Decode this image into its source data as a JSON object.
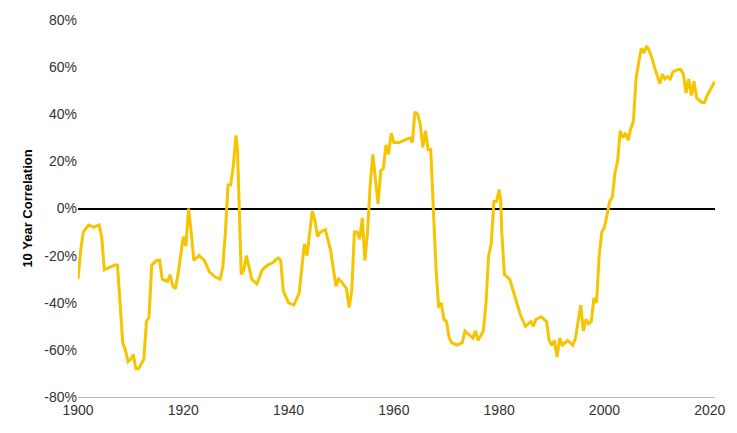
{
  "chart_data": {
    "type": "line",
    "y_label": "10 Year Correlation",
    "color": "#f6c400",
    "grid": false,
    "x": [
      1900,
      1900.5,
      1901,
      1902,
      1903,
      1904,
      1904.5,
      1905,
      1906,
      1907,
      1907.5,
      1908,
      1908.5,
      1909,
      1909.5,
      1910,
      1910.5,
      1911,
      1911.5,
      1912,
      1912.5,
      1913,
      1913.5,
      1914,
      1915,
      1915.5,
      1916,
      1917,
      1917.5,
      1918,
      1918.5,
      1919,
      1920,
      1920.5,
      1921,
      1921.5,
      1922,
      1923,
      1924,
      1925,
      1926,
      1927,
      1927.5,
      1928,
      1928.5,
      1929,
      1929.5,
      1930,
      1930.3,
      1930.7,
      1931,
      1931.5,
      1932,
      1933,
      1934,
      1935,
      1936,
      1937,
      1938,
      1938.5,
      1939,
      1940,
      1941,
      1942,
      1943,
      1943.5,
      1944,
      1944.5,
      1945,
      1945.5,
      1946,
      1947,
      1948,
      1949,
      1949.5,
      1950,
      1951,
      1951.5,
      1952,
      1952.5,
      1953,
      1953.5,
      1954,
      1954.5,
      1955,
      1955.5,
      1956,
      1956.5,
      1957,
      1957.5,
      1958,
      1958.5,
      1959,
      1959.5,
      1960,
      1961,
      1962,
      1963,
      1963.5,
      1964,
      1964.5,
      1965,
      1965.5,
      1966,
      1966.5,
      1967,
      1967.5,
      1968,
      1968.5,
      1969,
      1969.5,
      1970,
      1970.5,
      1971,
      1972,
      1973,
      1973.5,
      1974,
      1975,
      1975.5,
      1976,
      1977,
      1977.5,
      1978,
      1978.5,
      1979,
      1979.5,
      1980,
      1980.3,
      1980.5,
      1981,
      1982,
      1983,
      1984,
      1985,
      1986,
      1986.5,
      1987,
      1988,
      1989,
      1989.5,
      1990,
      1990.5,
      1991,
      1991.5,
      1992,
      1993,
      1994,
      1994.5,
      1995,
      1995.5,
      1996,
      1996.5,
      1997,
      1997.5,
      1998,
      1998.5,
      1999,
      1999.5,
      2000,
      2000.5,
      2001,
      2001.5,
      2002,
      2002.5,
      2003,
      2003.5,
      2004,
      2004.5,
      2005,
      2005.5,
      2006,
      2006.5,
      2007,
      2007.5,
      2008,
      2008.5,
      2009,
      2009.5,
      2010,
      2010.5,
      2011,
      2011.5,
      2012,
      2012.5,
      2013,
      2014,
      2014.5,
      2015,
      2015.5,
      2016,
      2016.5,
      2017,
      2017.5,
      2018,
      2018.5,
      2019,
      2019.5,
      2020,
      2020.5,
      2021
    ],
    "values": [
      -30,
      -18,
      -10,
      -7,
      -8,
      -7,
      -12,
      -26,
      -25,
      -24,
      -24,
      -40,
      -57,
      -60,
      -65,
      -64,
      -62,
      -68,
      -68,
      -66,
      -64,
      -48,
      -46,
      -24,
      -22,
      -22,
      -30,
      -31,
      -28,
      -33,
      -34,
      -28,
      -12,
      -16,
      0,
      -10,
      -22,
      -20,
      -22,
      -27,
      -29,
      -30,
      -25,
      -10,
      10,
      10,
      18,
      31,
      25,
      -5,
      -28,
      -26,
      -20,
      -30,
      -32,
      -26,
      -24,
      -23,
      -21,
      -22,
      -35,
      -40,
      -41,
      -36,
      -15,
      -20,
      -10,
      -1,
      -5,
      -12,
      -10,
      -9,
      -18,
      -33,
      -30,
      -31,
      -34,
      -42,
      -35,
      -10,
      -10,
      -13,
      -4,
      -22,
      -10,
      10,
      23,
      12,
      2,
      16,
      17,
      27,
      23,
      32,
      28,
      28,
      29,
      30,
      28,
      41,
      40,
      36,
      26,
      33,
      25,
      25,
      0,
      -25,
      -42,
      -40,
      -47,
      -48,
      -55,
      -57,
      -58,
      -57,
      -52,
      -53,
      -55,
      -52,
      -56,
      -52,
      -40,
      -20,
      -15,
      3,
      3,
      8,
      3,
      -10,
      -28,
      -30,
      -38,
      -45,
      -50,
      -48,
      -50,
      -47,
      -46,
      -48,
      -56,
      -58,
      -56,
      -63,
      -55,
      -58,
      -56,
      -58,
      -55,
      -47,
      -41,
      -52,
      -47,
      -49,
      -48,
      -38,
      -40,
      -20,
      -10,
      -8,
      -2,
      3,
      5,
      15,
      20,
      33,
      30,
      32,
      29,
      34,
      37,
      55,
      62,
      68,
      66,
      69,
      67,
      64,
      60,
      56,
      53,
      57,
      55,
      56,
      55,
      58,
      59,
      59,
      57,
      49,
      55,
      48,
      54,
      47,
      46,
      45,
      45,
      48,
      50,
      52,
      54
    ],
    "xlim": [
      1900,
      2021
    ],
    "ylim": [
      -80,
      80
    ],
    "xticks": [
      1900,
      1920,
      1940,
      1960,
      1980,
      2000,
      2020
    ],
    "yticks": [
      {
        "value": -80,
        "label": "-80%"
      },
      {
        "value": -60,
        "label": "-60%"
      },
      {
        "value": -40,
        "label": "-40%"
      },
      {
        "value": -20,
        "label": "-20%"
      },
      {
        "value": 0,
        "label": "0%"
      },
      {
        "value": 20,
        "label": "20%"
      },
      {
        "value": 40,
        "label": "40%"
      },
      {
        "value": 60,
        "label": "60%"
      },
      {
        "value": 80,
        "label": "80%"
      }
    ]
  }
}
